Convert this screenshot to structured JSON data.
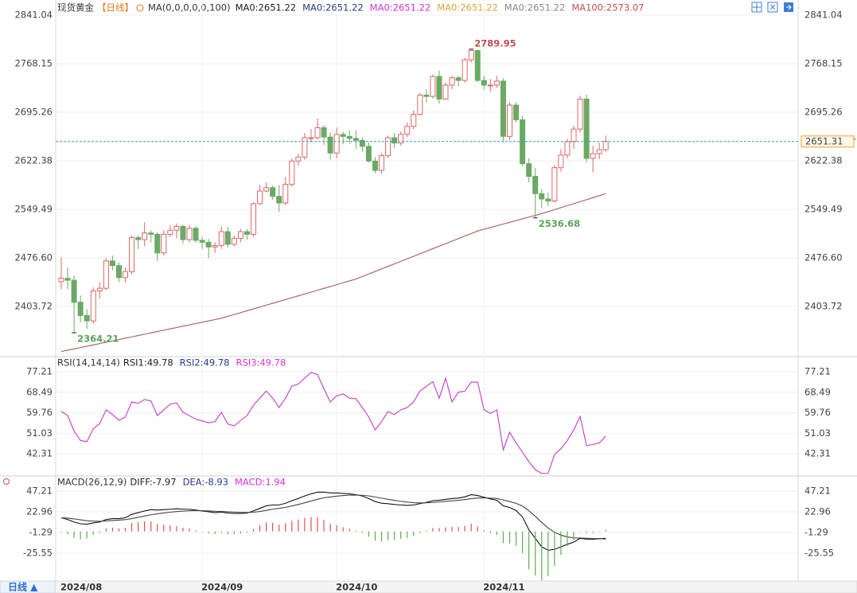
{
  "chart_data": [
    {
      "type": "candlestick",
      "title": "现货黄金",
      "period": "【日线】",
      "indicator": "MA(0,0,0,0,0,100)",
      "legend": [
        {
          "label": "MA0:2651.22",
          "color": "#222222"
        },
        {
          "label": "MA0:2651.22",
          "color": "#2b3a8c"
        },
        {
          "label": "MA0:2651.22",
          "color": "#d633d6"
        },
        {
          "label": "MA0:2651.22",
          "color": "#e5a23a"
        },
        {
          "label": "MA0:2651.22",
          "color": "#8a8a8a"
        },
        {
          "label": "MA100:2573.07",
          "color": "#c0504d"
        }
      ],
      "categories": [
        "2024/08",
        null,
        null,
        null,
        null,
        null,
        null,
        null,
        null,
        null,
        null,
        null,
        null,
        null,
        null,
        null,
        null,
        null,
        null,
        null,
        null,
        null,
        "2024/09",
        null,
        null,
        null,
        null,
        null,
        null,
        null,
        null,
        null,
        null,
        null,
        null,
        null,
        null,
        null,
        null,
        null,
        null,
        null,
        null,
        "2024/10",
        null,
        null,
        null,
        null,
        null,
        null,
        null,
        null,
        null,
        null,
        null,
        null,
        null,
        null,
        null,
        null,
        null,
        null,
        null,
        null,
        null,
        null,
        "2024/11",
        null,
        null,
        null,
        null,
        null,
        null,
        null,
        null,
        null,
        null,
        null,
        null,
        null,
        null,
        null,
        null,
        null,
        null,
        null
      ],
      "open": [
        2441,
        2446,
        2443,
        2410,
        2390,
        2382,
        2427,
        2431,
        2472,
        2465,
        2447,
        2456,
        2507,
        2504,
        2514,
        2512,
        2484,
        2512,
        2518,
        2524,
        2504,
        2521,
        2503,
        2500,
        2493,
        2495,
        2516,
        2497,
        2506,
        2516,
        2512,
        2558,
        2577,
        2582,
        2569,
        2559,
        2587,
        2622,
        2628,
        2657,
        2657,
        2672,
        2658,
        2634,
        2662,
        2659,
        2656,
        2653,
        2644,
        2622,
        2608,
        2630,
        2657,
        2649,
        2662,
        2674,
        2692,
        2721,
        2719,
        2749,
        2715,
        2736,
        2747,
        2743,
        2774,
        2788,
        2743,
        2736,
        2736,
        2742,
        2659,
        2706,
        2684,
        2618,
        2599,
        2573,
        2565,
        2562,
        2612,
        2631,
        2651,
        2670,
        2715,
        2626,
        2633,
        2639
      ],
      "high": [
        2477,
        2462,
        2450,
        2420,
        2400,
        2432,
        2440,
        2476,
        2480,
        2470,
        2462,
        2510,
        2510,
        2530,
        2518,
        2515,
        2518,
        2526,
        2528,
        2526,
        2526,
        2524,
        2508,
        2505,
        2500,
        2524,
        2523,
        2510,
        2520,
        2520,
        2560,
        2586,
        2590,
        2585,
        2586,
        2598,
        2626,
        2633,
        2664,
        2670,
        2686,
        2676,
        2665,
        2672,
        2666,
        2668,
        2668,
        2658,
        2650,
        2628,
        2634,
        2660,
        2664,
        2666,
        2680,
        2698,
        2724,
        2730,
        2752,
        2758,
        2740,
        2750,
        2750,
        2777,
        2789.95,
        2789,
        2750,
        2745,
        2750,
        2746,
        2710,
        2710,
        2690,
        2626,
        2612,
        2580,
        2575,
        2616,
        2640,
        2655,
        2675,
        2720,
        2722,
        2645,
        2650,
        2660
      ],
      "low": [
        2430,
        2430,
        2364.21,
        2380,
        2370,
        2378,
        2415,
        2428,
        2458,
        2440,
        2440,
        2452,
        2490,
        2494,
        2500,
        2472,
        2480,
        2508,
        2506,
        2498,
        2500,
        2500,
        2490,
        2476,
        2484,
        2490,
        2492,
        2494,
        2500,
        2504,
        2508,
        2556,
        2575,
        2564,
        2546,
        2556,
        2584,
        2615,
        2624,
        2650,
        2654,
        2646,
        2624,
        2626,
        2647,
        2648,
        2640,
        2636,
        2620,
        2604,
        2603,
        2627,
        2641,
        2645,
        2658,
        2670,
        2690,
        2710,
        2716,
        2708,
        2714,
        2730,
        2734,
        2740,
        2770,
        2740,
        2729,
        2726,
        2732,
        2652,
        2654,
        2680,
        2614,
        2590,
        2536.68,
        2552,
        2554,
        2560,
        2606,
        2626,
        2640,
        2665,
        2620,
        2605,
        2625,
        2636
      ],
      "close": [
        2446,
        2443,
        2410,
        2390,
        2382,
        2427,
        2431,
        2472,
        2465,
        2447,
        2456,
        2507,
        2504,
        2514,
        2512,
        2484,
        2512,
        2518,
        2524,
        2504,
        2521,
        2503,
        2500,
        2493,
        2495,
        2516,
        2497,
        2506,
        2516,
        2512,
        2558,
        2577,
        2582,
        2569,
        2559,
        2587,
        2622,
        2628,
        2657,
        2657,
        2672,
        2658,
        2634,
        2662,
        2659,
        2656,
        2653,
        2644,
        2622,
        2608,
        2630,
        2657,
        2649,
        2662,
        2674,
        2692,
        2721,
        2719,
        2749,
        2715,
        2736,
        2747,
        2743,
        2774,
        2788,
        2743,
        2736,
        2736,
        2742,
        2659,
        2706,
        2684,
        2618,
        2599,
        2573,
        2565,
        2562,
        2612,
        2631,
        2651,
        2670,
        2715,
        2626,
        2633,
        2639,
        2651.31
      ],
      "up_color": "#e06666",
      "down_color": "#6aaa64",
      "price_line_color": "#3f95b8",
      "series": [
        {
          "color": "#a85a5a",
          "values": [
            2336,
            2338,
            2340,
            2342,
            2344,
            2346,
            2348,
            2350,
            2352,
            2354,
            2356,
            2358,
            2360,
            2362,
            2364,
            2366,
            2368,
            2370,
            2372,
            2374,
            2376,
            2378,
            2380,
            2382,
            2384,
            2386,
            2388.8,
            2391.6,
            2394.4,
            2397.2,
            2400,
            2402.8,
            2405.6,
            2408.4,
            2411.2,
            2414,
            2416.8,
            2419.6,
            2422.4,
            2425.2,
            2428,
            2430.8,
            2433.6,
            2436.4,
            2439.2,
            2442,
            2444.8,
            2448.6,
            2452.4,
            2456.2,
            2460,
            2463.8,
            2467.6,
            2471.4,
            2475.2,
            2479,
            2482.8,
            2486.6,
            2490.4,
            2494.2,
            2498,
            2501.8,
            2505.6,
            2509.4,
            2513.2,
            2517,
            2519.6,
            2522.2,
            2524.8,
            2527.4,
            2530,
            2532.6,
            2535.2,
            2537.8,
            2540.4,
            2543,
            2546,
            2549,
            2552,
            2555,
            2558,
            2561,
            2564,
            2567,
            2570,
            2573.07
          ]
        }
      ],
      "ylim": [
        2329.6,
        2854.2
      ],
      "yticks": [
        2841.04,
        2768.15,
        2695.26,
        2622.38,
        2549.49,
        {
          "value": 2476.6,
          "label": "2476.60"
        },
        2403.72
      ],
      "grid": true
    },
    {
      "type": "line",
      "title": "RSI(14,14,14)",
      "legend": [
        {
          "label": "RSI1:49.78",
          "color": "#222222"
        },
        {
          "label": "RSI2:49.78",
          "color": "#2b3a8c"
        },
        {
          "label": "RSI3:49.78",
          "color": "#d633d6"
        }
      ],
      "series": [
        {
          "type": "line",
          "color": "#c43cc4",
          "values": [
            60.3,
            58.6,
            52,
            48,
            47.5,
            53,
            55.2,
            61,
            59,
            56.6,
            58,
            64.4,
            63.8,
            65.4,
            64.8,
            58.6,
            61,
            63.4,
            64,
            60,
            58.6,
            57,
            56.3,
            55.5,
            56,
            60,
            55,
            54.2,
            56.5,
            58.6,
            63,
            66,
            69,
            66,
            62,
            66,
            71.1,
            72,
            74.5,
            76.9,
            76,
            70,
            64.4,
            67,
            67.8,
            66,
            65.8,
            62,
            58,
            52.5,
            56,
            60.3,
            59,
            61,
            62,
            64.4,
            69,
            71,
            73,
            66,
            74.5,
            64.4,
            68.5,
            69,
            72.8,
            72.8,
            61,
            59.5,
            61,
            44,
            51.5,
            47,
            43,
            39,
            35.6,
            34,
            34,
            42,
            44.5,
            48,
            52.5,
            58.2,
            45.8,
            46.3,
            47,
            49.78
          ]
        }
      ],
      "ylim": [
        32.9,
        82.3
      ],
      "yticks": [
        77.21,
        68.49,
        59.76,
        51.03,
        42.31
      ],
      "grid": true
    },
    {
      "type": "line",
      "title": "MACD(26,12,9)",
      "legend": [
        {
          "label": "DIFF:-7.97",
          "color": "#222222"
        },
        {
          "label": "DEA:-8.93",
          "color": "#2b3a8c"
        },
        {
          "label": "MACD:1.94",
          "color": "#d633d6"
        }
      ],
      "series": [
        {
          "type": "line",
          "color": "#111111",
          "values": [
            16,
            14,
            11,
            9,
            8.5,
            10,
            11,
            14,
            15,
            15,
            16,
            20,
            22,
            24,
            25.5,
            25,
            25.5,
            26,
            26.5,
            26,
            26,
            25,
            24,
            23,
            22,
            22.5,
            21.5,
            21,
            21,
            21.5,
            24,
            27,
            30,
            31,
            31,
            33,
            36,
            38.5,
            41.5,
            44,
            46,
            46,
            45,
            45,
            44.5,
            44,
            43,
            41.5,
            38.5,
            35,
            33,
            32.5,
            31.5,
            31,
            30.5,
            31,
            32.5,
            34,
            36,
            36.5,
            37.5,
            38.5,
            39,
            40.5,
            43,
            42,
            40,
            38,
            36.5,
            30,
            28,
            24.5,
            17,
            2,
            -8,
            -18,
            -22,
            -21,
            -18,
            -15,
            -12.5,
            -8,
            -9,
            -9,
            -8.5,
            -7.97
          ]
        },
        {
          "type": "line",
          "color": "#444444",
          "values": [
            16,
            15.6,
            14.7,
            13.6,
            12.6,
            12.1,
            11.9,
            12.3,
            12.8,
            13.3,
            13.8,
            15,
            16.5,
            18,
            19.5,
            20.6,
            21.6,
            22.5,
            23.3,
            23.8,
            24.2,
            24.4,
            24.3,
            24,
            23.6,
            23.4,
            23,
            22.6,
            22.3,
            22.1,
            22.5,
            23.4,
            24.7,
            26,
            27,
            28.2,
            29.8,
            31.5,
            33.5,
            35.6,
            37.7,
            39.3,
            40.4,
            41.3,
            42,
            42.4,
            42.5,
            42.3,
            41.6,
            40.3,
            38.9,
            37.6,
            36.4,
            35.3,
            34.3,
            33.6,
            33.4,
            33.5,
            34,
            34.5,
            35.1,
            35.8,
            36.4,
            37.2,
            38.4,
            39.1,
            39.3,
            39,
            38.5,
            36.8,
            35,
            32.9,
            29.7,
            24.2,
            17.8,
            10.6,
            4.1,
            -0.9,
            -4.3,
            -6.4,
            -7.6,
            -7.7,
            -8,
            -8.2,
            -8.3,
            -8.93
          ]
        },
        {
          "type": "bar",
          "color": "#d9534f",
          "down_color": "#5cae4f",
          "values": [
            0,
            -3.2,
            -7.4,
            -9.2,
            -8.2,
            -4.2,
            -1.8,
            3.4,
            4.4,
            3.4,
            4.4,
            10,
            11,
            12,
            12,
            8.8,
            7.8,
            7,
            6.4,
            4.4,
            3.6,
            1.2,
            -0.6,
            -2,
            -3.2,
            -1.8,
            -3,
            -3.2,
            -2.6,
            -1.2,
            3,
            7.2,
            10.6,
            10,
            8,
            9.6,
            12.4,
            14,
            16,
            16.8,
            16.6,
            13.4,
            9.2,
            7.4,
            5,
            3.2,
            1,
            -1.6,
            -6.2,
            -10.6,
            -11.8,
            -10.2,
            -9.8,
            -8.6,
            -7.6,
            -5.2,
            -1.8,
            1,
            4,
            4,
            4.8,
            5.4,
            5.2,
            6.6,
            9.2,
            5.8,
            1.4,
            -2,
            -4,
            -13.6,
            -14,
            -16.8,
            -25.4,
            -44.4,
            -51.6,
            -57.2,
            -52.2,
            -40.2,
            -27.4,
            -17.2,
            -9.8,
            -0.6,
            -2,
            -1.6,
            -0.4,
            1.94
          ]
        }
      ],
      "ylim": [
        -58,
        63
      ],
      "yticks": [
        47.21,
        22.96,
        -1.29,
        -25.55
      ],
      "grid": true
    }
  ],
  "footer": {
    "period": "日线 ▲"
  }
}
